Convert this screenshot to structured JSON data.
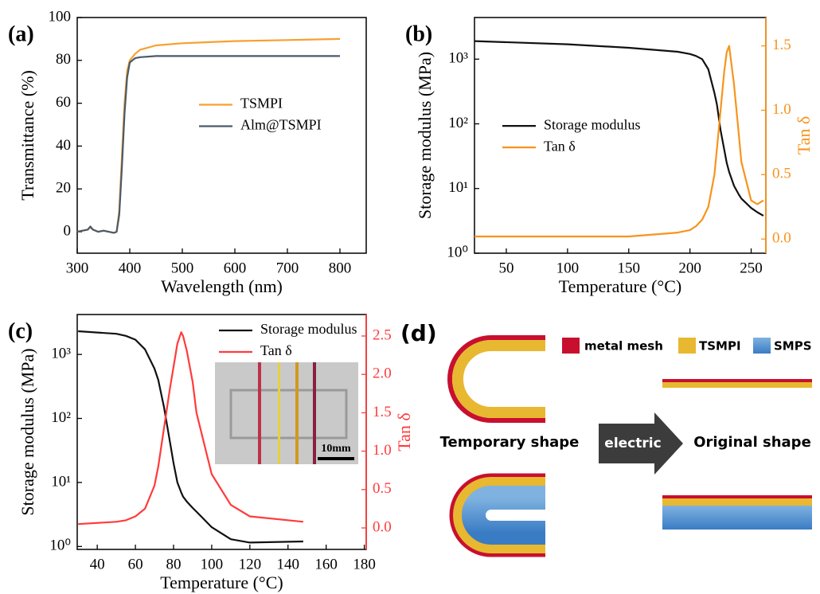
{
  "chart_data": [
    {
      "type": "line",
      "panel_label": "(a)",
      "x_label": "Wavelength (nm)",
      "y_label": "Transmittance (%)",
      "x": [
        300,
        310,
        320,
        325,
        330,
        340,
        350,
        360,
        370,
        375,
        380,
        385,
        390,
        395,
        400,
        410,
        420,
        450,
        500,
        600,
        700,
        800
      ],
      "series": [
        {
          "name": "TSMPI",
          "color": "#f7a030",
          "values": [
            0,
            0.5,
            1,
            2,
            1,
            0,
            0.5,
            0,
            -0.5,
            0,
            10,
            35,
            60,
            75,
            80,
            83,
            85,
            87,
            88,
            89,
            89.5,
            90
          ]
        },
        {
          "name": "Alm@TSMPI",
          "color": "#4a5a6a",
          "values": [
            0,
            0.5,
            1,
            2.5,
            1,
            0,
            0.5,
            0,
            -0.5,
            0,
            8,
            30,
            55,
            72,
            79,
            81,
            81.5,
            82,
            82,
            82,
            82,
            82
          ]
        }
      ],
      "xlim": [
        300,
        850
      ],
      "xticks": [
        300,
        400,
        500,
        600,
        700,
        800
      ],
      "ylim": [
        -10,
        100
      ],
      "yticks": [
        0,
        20,
        40,
        60,
        80,
        100
      ],
      "legend": "right"
    },
    {
      "type": "line",
      "panel_label": "(b)",
      "x_label": "Temperature (°C)",
      "y_label": "Storage modulus (MPa)",
      "y2_label": "Tan δ",
      "x": [
        24,
        100,
        150,
        190,
        200,
        205,
        210,
        215,
        220,
        222,
        225,
        228,
        230,
        232,
        236,
        240,
        242,
        250,
        255,
        260
      ],
      "series": [
        {
          "name": "Storage modulus",
          "color": "#111111",
          "values": [
            1900,
            1700,
            1500,
            1300,
            1200,
            1120,
            1000,
            700,
            300,
            200,
            80,
            40,
            25,
            18,
            11,
            8,
            7,
            5,
            4.3,
            3.8
          ]
        },
        {
          "name": "Tan δ",
          "color": "#f7941d",
          "axis": "y2",
          "values": [
            0.02,
            0.02,
            0.02,
            0.05,
            0.07,
            0.1,
            0.15,
            0.25,
            0.5,
            0.7,
            1.0,
            1.3,
            1.45,
            1.5,
            1.2,
            0.8,
            0.6,
            0.3,
            0.27,
            0.3
          ]
        }
      ],
      "xlim": [
        24,
        262
      ],
      "xticks": [
        50,
        100,
        150,
        200,
        250
      ],
      "ylog": true,
      "ylim": [
        1,
        4400
      ],
      "yticks": [
        {
          "value": 1,
          "label": "10⁰"
        },
        {
          "value": 10,
          "label": "10¹"
        },
        {
          "value": 100,
          "label": "10²"
        },
        {
          "value": 1000,
          "label": "10³"
        }
      ],
      "y2lim": [
        -0.11,
        1.72
      ],
      "y2ticks": [
        {
          "value": 0,
          "label": "0.0"
        },
        {
          "value": 0.5,
          "label": "0.5"
        },
        {
          "value": 1,
          "label": "1.0"
        },
        {
          "value": 1.5,
          "label": "1.5"
        }
      ],
      "legend": "left"
    },
    {
      "type": "line",
      "panel_label": "(c)",
      "x_label": "Temperature (°C)",
      "y_label": "Storage modulus (MPa)",
      "y2_label": "Tan δ",
      "annotations": [
        "10mm"
      ],
      "x": [
        30,
        50,
        55,
        60,
        65,
        70,
        72,
        75,
        78,
        80,
        82,
        84,
        85,
        87,
        90,
        92,
        100,
        110,
        120,
        148
      ],
      "series": [
        {
          "name": "Storage modulus",
          "color": "#111111",
          "values": [
            2300,
            2100,
            1950,
            1700,
            1200,
            600,
            400,
            150,
            45,
            20,
            10,
            7,
            6,
            5,
            4,
            3.5,
            2,
            1.3,
            1.15,
            1.2
          ]
        },
        {
          "name": "Tan δ",
          "color": "#ff3b3b",
          "axis": "y2",
          "values": [
            0.05,
            0.08,
            0.1,
            0.15,
            0.25,
            0.55,
            0.8,
            1.3,
            1.8,
            2.1,
            2.4,
            2.55,
            2.5,
            2.3,
            1.9,
            1.5,
            0.7,
            0.3,
            0.15,
            0.08
          ]
        }
      ],
      "xlim": [
        29.5,
        181
      ],
      "xticks": [
        40,
        60,
        80,
        100,
        120,
        140,
        160,
        180
      ],
      "ylog": true,
      "ylim": [
        0.9,
        4200
      ],
      "yticks": [
        {
          "value": 1,
          "label": "10⁰"
        },
        {
          "value": 10,
          "label": "10¹"
        },
        {
          "value": 100,
          "label": "10²"
        },
        {
          "value": 1000,
          "label": "10³"
        }
      ],
      "y2lim": [
        -0.28,
        2.78
      ],
      "y2ticks": [
        {
          "value": 0,
          "label": "0.0"
        },
        {
          "value": 0.5,
          "label": "0.5"
        },
        {
          "value": 1,
          "label": "1.0"
        },
        {
          "value": 1.5,
          "label": "1.5"
        },
        {
          "value": 2,
          "label": "2.0"
        },
        {
          "value": 2.5,
          "label": "2.5"
        }
      ],
      "legend": "upper right"
    }
  ],
  "diagram": {
    "panel_label": "(d)",
    "legend": [
      "metal mesh",
      "TSMPI",
      "SMPS"
    ],
    "from": "Temporary shape",
    "arrow": "electric",
    "to": "Original shape"
  }
}
